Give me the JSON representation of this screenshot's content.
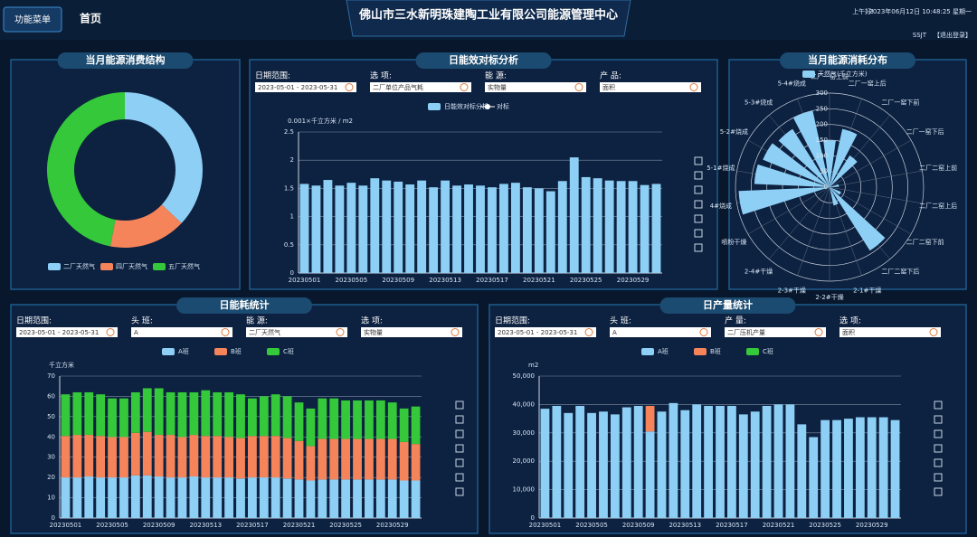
{
  "header": {
    "menu": "功能菜单",
    "home": "首页",
    "title": "佛山市三水新明珠建陶工业有限公司能源管理中心",
    "greeting": "上午好!",
    "datetime": "2023年06月12日 10:48:25 星期一",
    "user": "SSJT",
    "logout": "【退出登录】"
  },
  "chart_data": [
    {
      "type": "pie",
      "title": "当月能源消费结构",
      "categories": [
        "二厂天然气",
        "四厂天然气",
        "五厂天然气"
      ],
      "values": [
        37,
        16,
        47
      ],
      "colors": [
        "#8ecff5",
        "#f5845a",
        "#34c83a"
      ]
    },
    {
      "type": "bar",
      "title": "日能效对标分析",
      "filters": [
        {
          "label": "日期范围:",
          "value": "2023-05-01 - 2023-05-31"
        },
        {
          "label": "选 项:",
          "value": "二厂单位产品气耗"
        },
        {
          "label": "能 源:",
          "value": "实物量"
        },
        {
          "label": "产 品:",
          "value": "面积"
        }
      ],
      "ylabel": "0.001×千立方米 / m2",
      "categories": [
        "20230501",
        null,
        null,
        null,
        "20230505",
        null,
        null,
        null,
        "20230509",
        null,
        null,
        null,
        "20230513",
        null,
        null,
        null,
        "20230517",
        null,
        null,
        null,
        "20230521",
        null,
        null,
        null,
        "20230525",
        null,
        null,
        null,
        "20230529",
        null,
        null
      ],
      "series": [
        {
          "name": "日能效对标分析",
          "color": "#8ecff5",
          "values": [
            1.58,
            1.55,
            1.65,
            1.55,
            1.6,
            1.55,
            1.68,
            1.64,
            1.62,
            1.57,
            1.64,
            1.52,
            1.64,
            1.55,
            1.57,
            1.55,
            1.52,
            1.58,
            1.6,
            1.52,
            1.5,
            1.45,
            1.63,
            2.05,
            1.7,
            1.68,
            1.64,
            1.63,
            1.63,
            1.56,
            1.58
          ]
        },
        {
          "name": "对标",
          "color": "#ffffff",
          "values": [
            null,
            null,
            null,
            null,
            null,
            null,
            null,
            null,
            null,
            null,
            null,
            null,
            null,
            null,
            null,
            null,
            null,
            null,
            null,
            null,
            null,
            null,
            null,
            null,
            null,
            null,
            null,
            null,
            null,
            null,
            null
          ]
        }
      ],
      "ylim": [
        0,
        2.5
      ],
      "yticks": [
        0,
        0.5,
        1,
        1.5,
        2,
        2.5
      ],
      "grid": true
    },
    {
      "type": "polar_bar",
      "title": "当月能源消耗分布",
      "categories": [
        "二厂一窑上前",
        "二厂一窑上后",
        "二厂一窑下前",
        "二厂一窑下后",
        "二厂二窑上前",
        "二厂二窑上后",
        "二厂二窑下前",
        "二厂二窑下后",
        "2-1#干燥",
        "2-2#干燥",
        "2-3#干燥",
        "2-4#干燥",
        "喷粉干燥",
        "4#烧成",
        "5-1#烧成",
        "5-2#烧成",
        "5-3#烧成",
        "5-4#烧成"
      ],
      "series": [
        {
          "name": "天然气(千立方米)",
          "color": "#8ecff5",
          "values": [
            150,
            190,
            120,
            0,
            30,
            0,
            40,
            240,
            60,
            0,
            0,
            0,
            0,
            290,
            240,
            230,
            220,
            250
          ]
        }
      ],
      "rlim": [
        0,
        300
      ],
      "rticks": [
        0,
        50,
        100,
        150,
        200,
        250,
        300
      ]
    },
    {
      "type": "stacked_bar",
      "title": "日能耗统计",
      "filters": [
        {
          "label": "日期范围:",
          "value": "2023-05-01 - 2023-05-31"
        },
        {
          "label": "头 班:",
          "value": "A"
        },
        {
          "label": "能 源:",
          "value": "二厂天然气"
        },
        {
          "label": "选 项:",
          "value": "实物量"
        }
      ],
      "ylabel": "千立方米",
      "categories": [
        "20230501",
        null,
        null,
        null,
        "20230505",
        null,
        null,
        null,
        "20230509",
        null,
        null,
        null,
        "20230513",
        null,
        null,
        null,
        "20230517",
        null,
        null,
        null,
        "20230521",
        null,
        null,
        null,
        "20230525",
        null,
        null,
        null,
        "20230529",
        null,
        null
      ],
      "series": [
        {
          "name": "A班",
          "color": "#8ecff5",
          "values": [
            20,
            20,
            20.5,
            20,
            20,
            20,
            21,
            21,
            20.5,
            20,
            20,
            20.5,
            20,
            20,
            20,
            19.5,
            20,
            20,
            20,
            19.5,
            19,
            18.5,
            19,
            19,
            19,
            19,
            19,
            19,
            19,
            18.5,
            18.5
          ]
        },
        {
          "name": "B班",
          "color": "#f5845a",
          "values": [
            20.5,
            21,
            20.5,
            20.5,
            20,
            20,
            21,
            21.5,
            20.5,
            21,
            20,
            20.5,
            20.5,
            20.5,
            20,
            20,
            20.5,
            20.5,
            20.5,
            20,
            19,
            17,
            20,
            20,
            20,
            20,
            20,
            20,
            20,
            19,
            18
          ]
        },
        {
          "name": "C班",
          "color": "#34c83a",
          "values": [
            20.5,
            21,
            21,
            20.5,
            19,
            19,
            20,
            21.5,
            23,
            21,
            22,
            21,
            22.5,
            21.5,
            22,
            21.5,
            18.5,
            19.5,
            20.5,
            20.5,
            19,
            18.5,
            20,
            20,
            19,
            19,
            19,
            19,
            18,
            16.5,
            18.5
          ]
        }
      ],
      "ylim": [
        0,
        70
      ],
      "yticks": [
        0,
        10,
        20,
        30,
        40,
        50,
        60,
        70
      ],
      "grid": true
    },
    {
      "type": "stacked_bar",
      "title": "日产量统计",
      "filters": [
        {
          "label": "日期范围:",
          "value": "2023-05-01 - 2023-05-31"
        },
        {
          "label": "头 班:",
          "value": "A"
        },
        {
          "label": "产 量:",
          "value": "二厂压机产量"
        },
        {
          "label": "选 项:",
          "value": "面积"
        }
      ],
      "ylabel": "m2",
      "categories": [
        "20230501",
        null,
        null,
        null,
        "20230505",
        null,
        null,
        null,
        "20230509",
        null,
        null,
        null,
        "20230513",
        null,
        null,
        null,
        "20230517",
        null,
        null,
        null,
        "20230521",
        null,
        null,
        null,
        "20230525",
        null,
        null,
        null,
        "20230529",
        null,
        null
      ],
      "series": [
        {
          "name": "A班",
          "color": "#8ecff5",
          "values": [
            38500,
            39500,
            37000,
            39500,
            37000,
            37500,
            36500,
            39000,
            39500,
            30500,
            37500,
            40500,
            38000,
            40000,
            39500,
            39500,
            39500,
            36500,
            37500,
            39500,
            40000,
            40000,
            33000,
            28500,
            34500,
            34500,
            35000,
            35500,
            35500,
            35500,
            34500
          ]
        },
        {
          "name": "B班",
          "color": "#f5845a",
          "values": [
            0,
            0,
            0,
            0,
            0,
            0,
            0,
            0,
            0,
            9000,
            0,
            0,
            0,
            0,
            0,
            0,
            0,
            0,
            0,
            0,
            0,
            0,
            0,
            0,
            0,
            0,
            0,
            0,
            0,
            0,
            0
          ]
        },
        {
          "name": "C班",
          "color": "#34c83a",
          "values": [
            0,
            0,
            0,
            0,
            0,
            0,
            0,
            0,
            0,
            0,
            0,
            0,
            0,
            0,
            0,
            0,
            0,
            0,
            0,
            0,
            0,
            0,
            0,
            0,
            0,
            0,
            0,
            0,
            0,
            0,
            0
          ]
        }
      ],
      "ylim": [
        0,
        50000
      ],
      "yticks": [
        0,
        {
          "value": 10000,
          "label": "10,000"
        },
        {
          "value": 20000,
          "label": "20,000"
        },
        {
          "value": 30000,
          "label": "30,000"
        },
        {
          "value": 40000,
          "label": "40,000"
        },
        {
          "value": 50000,
          "label": "50,000"
        }
      ],
      "grid": true
    }
  ]
}
